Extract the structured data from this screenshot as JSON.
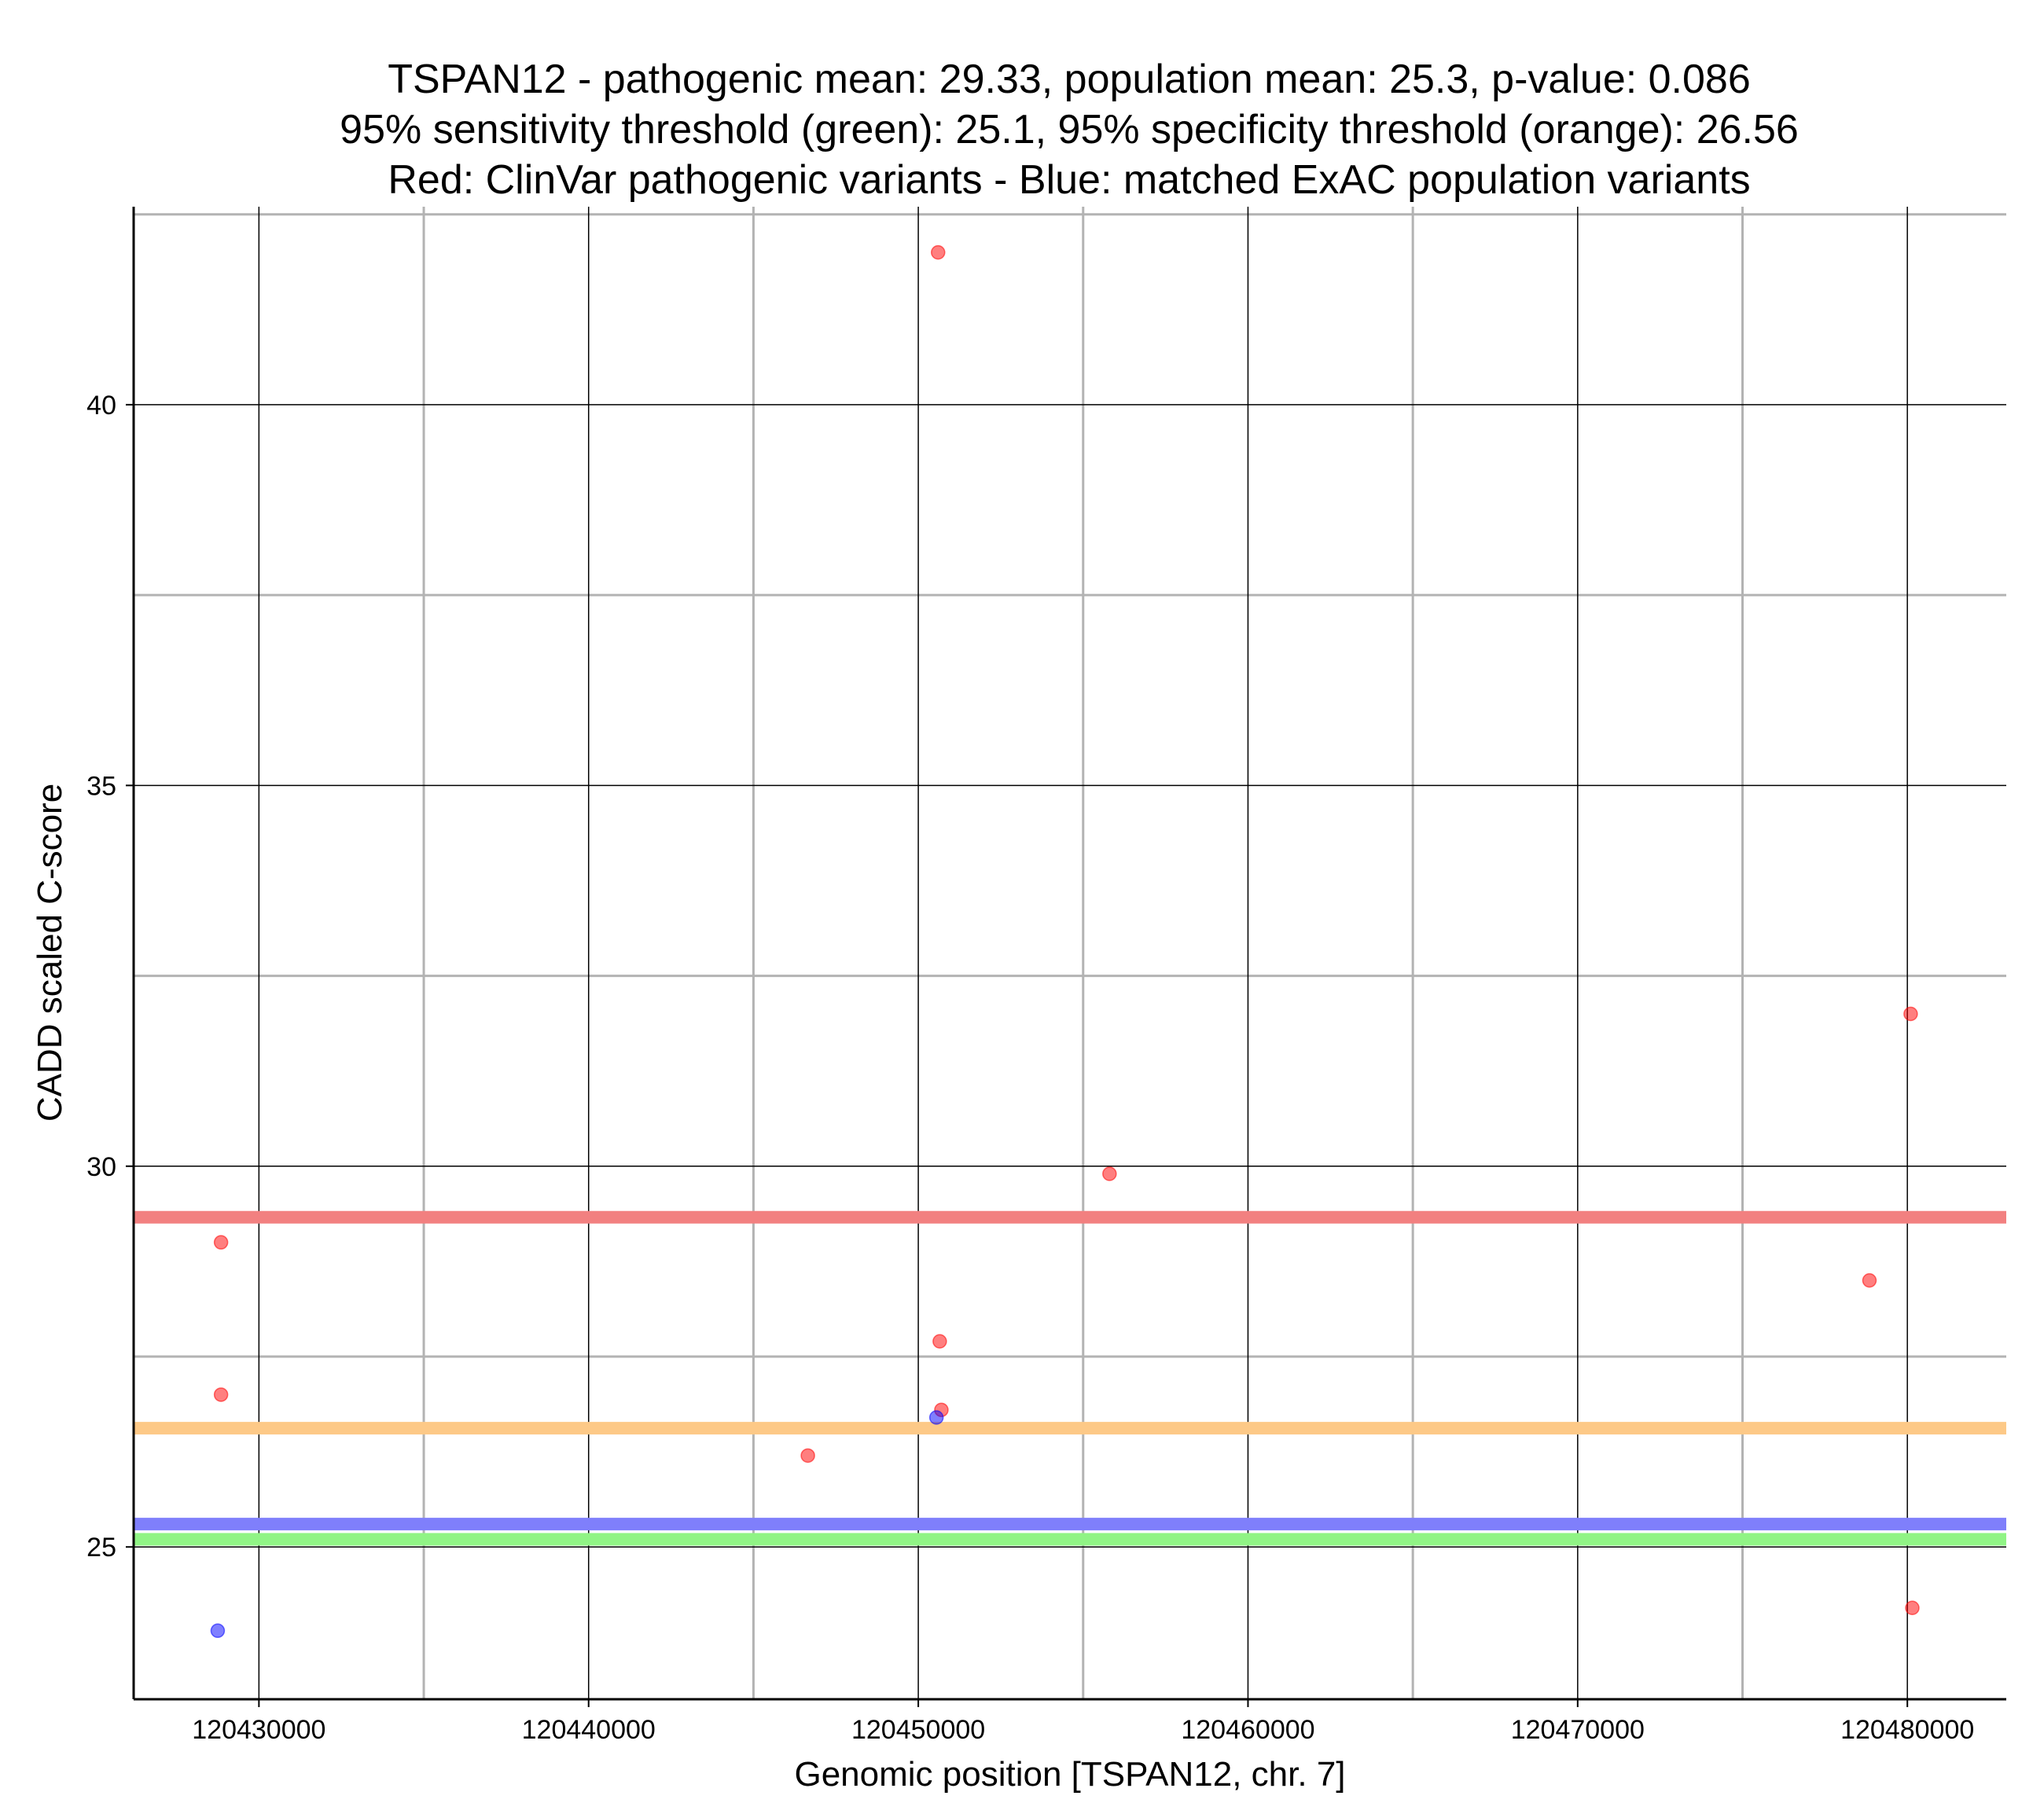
{
  "chart_data": {
    "type": "scatter",
    "title_lines": [
      "TSPAN12 - pathogenic mean: 29.33, population mean: 25.3, p-value: 0.086",
      "95% sensitivity threshold (green): 25.1, 95% specificity threshold (orange): 26.56",
      "Red: ClinVar pathogenic variants - Blue: matched ExAC population variants"
    ],
    "xlabel": "Genomic position [TSPAN12, chr. 7]",
    "ylabel": "CADD scaled C-score",
    "xlim": [
      120426200,
      120483000
    ],
    "ylim": [
      23.0,
      42.6
    ],
    "x_ticks": [
      120430000,
      120440000,
      120450000,
      120460000,
      120470000,
      120480000
    ],
    "x_minor_gridlines": [
      120435000,
      120445000,
      120455000,
      120465000,
      120475000
    ],
    "y_ticks": [
      25,
      30,
      35,
      40
    ],
    "y_minor_gridlines": [
      27.5,
      32.5,
      37.5,
      42.5
    ],
    "grid": true,
    "series": [
      {
        "color": "#ff0000",
        "points": [
          [
            120428850,
            29.0
          ],
          [
            120428850,
            27.0
          ],
          [
            120446650,
            26.2
          ],
          [
            120450650,
            27.7
          ],
          [
            120450700,
            26.8
          ],
          [
            120450600,
            42.0
          ],
          [
            120455800,
            29.9
          ],
          [
            120478850,
            28.5
          ],
          [
            120480100,
            32.0
          ],
          [
            120480150,
            24.2
          ]
        ]
      },
      {
        "color": "#0000ff",
        "points": [
          [
            120428750,
            23.9
          ],
          [
            120450550,
            26.7
          ]
        ]
      }
    ],
    "reference_lines": [
      {
        "label": "pathogenic mean",
        "value": 29.33,
        "color": "#f28080"
      },
      {
        "label": "95% specificity threshold",
        "value": 26.56,
        "color": "#fdc987"
      },
      {
        "label": "population mean",
        "value": 25.3,
        "color": "#7f7ffb"
      },
      {
        "label": "95% sensitivity threshold",
        "value": 25.1,
        "color": "#90f485"
      }
    ]
  }
}
